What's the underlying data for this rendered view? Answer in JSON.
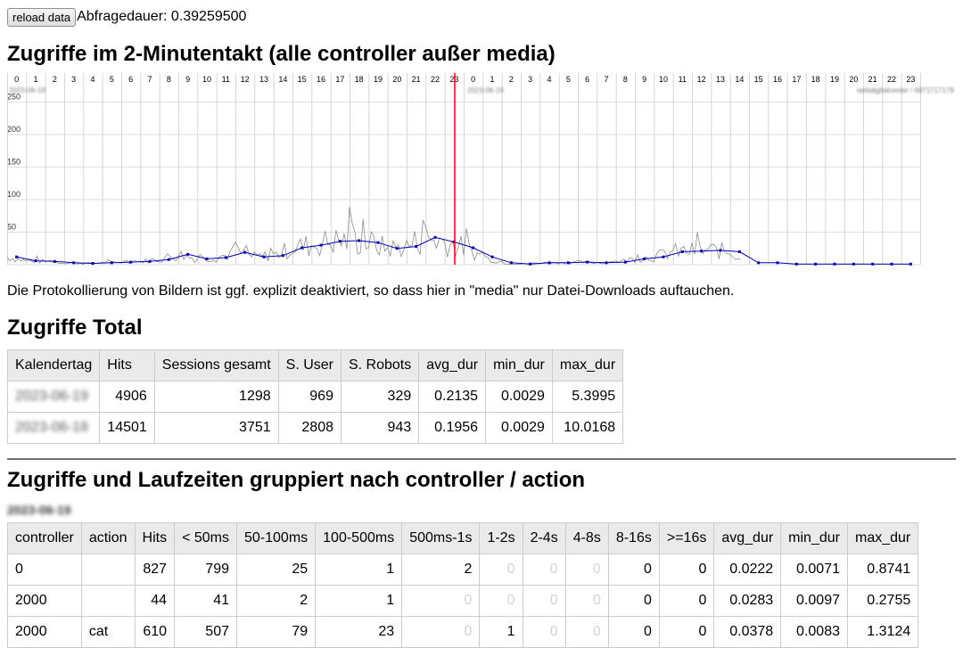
{
  "toolbar": {
    "reload_label": "reload data",
    "duration_text": "Abfragedauer: 0.39259500"
  },
  "chart_section": {
    "title": "Zugriffe im 2-Minutentakt (alle controller außer media)",
    "note": "Die Protokollierung von Bildern ist ggf. explizit deaktiviert, so dass hier in \"media\" nur Datei-Downloads auftauchen.",
    "date_labels": [
      "2023-06-18",
      "2023-06-19",
      "webdigitalcenter / 6871717179"
    ]
  },
  "chart_data": {
    "type": "line",
    "title": "",
    "xlabel": "",
    "ylabel": "",
    "ylim": [
      0,
      260
    ],
    "y_ticks": [
      0,
      50,
      100,
      150,
      200,
      250
    ],
    "x_ticks": [
      "0",
      "1",
      "2",
      "3",
      "4",
      "5",
      "6",
      "7",
      "8",
      "9",
      "10",
      "11",
      "12",
      "13",
      "14",
      "15",
      "16",
      "17",
      "18",
      "19",
      "20",
      "21",
      "22",
      "23",
      "0",
      "1",
      "2",
      "3",
      "4",
      "5",
      "6",
      "7",
      "8",
      "9",
      "10",
      "11",
      "12",
      "13",
      "14",
      "15",
      "16",
      "17",
      "18",
      "19",
      "20",
      "21",
      "22",
      "23"
    ],
    "grid": true,
    "day_boundary_hour": 24,
    "colors": {
      "raw": "#8c8c8c",
      "avg": "#0000b0",
      "marker": "#ff0000"
    },
    "series": [
      {
        "values_by_hour": [
          12,
          6,
          5,
          3,
          2,
          3,
          4,
          5,
          8,
          16,
          9,
          11,
          19,
          12,
          14,
          26,
          30,
          36,
          37,
          34,
          25,
          28,
          42,
          35,
          26,
          12,
          3,
          1,
          3,
          3,
          4,
          3,
          4,
          9,
          12,
          20,
          21,
          22,
          20,
          3,
          3,
          1,
          1,
          1,
          1,
          1,
          1,
          1
        ]
      }
    ]
  },
  "total_section": {
    "title": "Zugriffe Total",
    "columns": [
      "Kalendertag",
      "Hits",
      "Sessions gesamt",
      "S. User",
      "S. Robots",
      "avg_dur",
      "min_dur",
      "max_dur"
    ],
    "rows": [
      [
        "2023-06-19",
        "4906",
        "1298",
        "969",
        "329",
        "0.2135",
        "0.0029",
        "5.3995"
      ],
      [
        "2023-06-18",
        "14501",
        "3751",
        "2808",
        "943",
        "0.1956",
        "0.0029",
        "10.0168"
      ]
    ]
  },
  "group_section": {
    "title": "Zugriffe und Laufzeiten gruppiert nach controller / action",
    "date": "2023-06-19",
    "columns": [
      "controller",
      "action",
      "Hits",
      "< 50ms",
      "50-100ms",
      "100-500ms",
      "500ms-1s",
      "1-2s",
      "2-4s",
      "4-8s",
      "8-16s",
      ">=16s",
      "avg_dur",
      "min_dur",
      "max_dur"
    ],
    "rows": [
      [
        "0",
        "",
        "827",
        "799",
        "25",
        "1",
        "2",
        "0",
        "0",
        "0",
        "0",
        "0",
        "0.0222",
        "0.0071",
        "0.8741"
      ],
      [
        "2000",
        "",
        "44",
        "41",
        "2",
        "1",
        "0",
        "0",
        "0",
        "0",
        "0",
        "0",
        "0.0283",
        "0.0097",
        "0.2755"
      ],
      [
        "2000",
        "cat",
        "610",
        "507",
        "79",
        "23",
        "0",
        "1",
        "0",
        "0",
        "0",
        "0",
        "0.0378",
        "0.0083",
        "1.3124"
      ]
    ]
  }
}
